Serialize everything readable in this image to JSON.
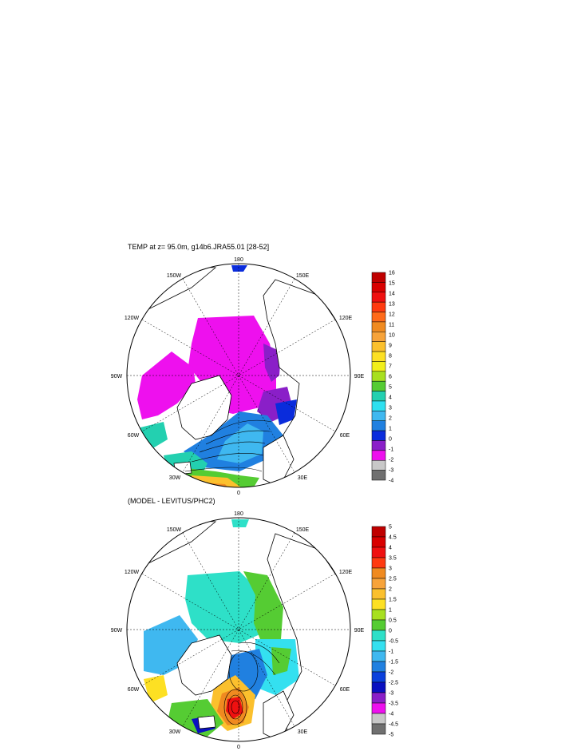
{
  "panels": [
    {
      "title": "TEMP at z=  95.0m, g14b6.JRA55.01 [28-52]",
      "lon_labels": [
        "180",
        "150E",
        "120E",
        "90E",
        "60E",
        "30E",
        "0",
        "30W",
        "60W",
        "90W",
        "120W",
        "150W"
      ],
      "colorbar": {
        "labels": [
          "16",
          "15",
          "14",
          "13",
          "12",
          "11",
          "10",
          "9",
          "8",
          "7",
          "6",
          "5",
          "4",
          "3",
          "2",
          "1",
          "0",
          "-1",
          "-2",
          "-3",
          "-4"
        ],
        "colors": [
          "#bf0000",
          "#d80000",
          "#ef1010",
          "#ff3a10",
          "#ff6a1a",
          "#f08a20",
          "#f7a33a",
          "#fbc02d",
          "#fde023",
          "#f2ef1a",
          "#a8e020",
          "#55cc33",
          "#23d0b0",
          "#2ee0f0",
          "#3fb8f0",
          "#2080e0",
          "#0a2cdc",
          "#8a1fc8",
          "#ee10ee",
          "#c8c8c8",
          "#707070"
        ]
      }
    },
    {
      "title": "(MODEL - LEVITUS/PHC2)",
      "lon_labels": [
        "180",
        "150E",
        "120E",
        "90E",
        "60E",
        "30E",
        "0",
        "30W",
        "60W",
        "90W",
        "120W",
        "150W"
      ],
      "colorbar": {
        "labels": [
          "5",
          "4.5",
          "4",
          "3.5",
          "3",
          "2.5",
          "2",
          "1.5",
          "1",
          "0.5",
          "0",
          "-0.5",
          "-1",
          "-1.5",
          "-2",
          "-2.5",
          "-3",
          "-3.5",
          "-4",
          "-4.5",
          "-5"
        ],
        "colors": [
          "#bf0000",
          "#d80000",
          "#ef1010",
          "#ff3a10",
          "#f08a20",
          "#f7a33a",
          "#fbc02d",
          "#fde023",
          "#a8e020",
          "#55cc33",
          "#2ee0c8",
          "#34e0f0",
          "#3fb8f0",
          "#2080e0",
          "#0a40dc",
          "#0a10c0",
          "#8a1fc8",
          "#ee10ee",
          "#c8c8c8",
          "#707070"
        ]
      }
    }
  ]
}
